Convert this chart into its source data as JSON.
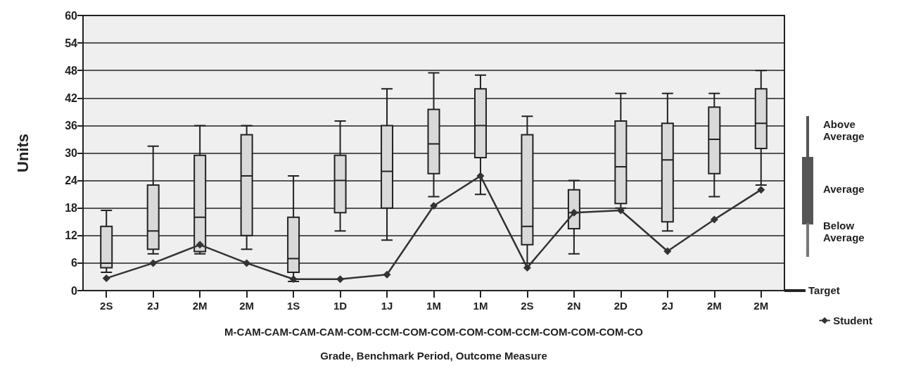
{
  "chart_data": {
    "type": "box",
    "xlabel": "Grade, Benchmark Period, Outcome Measure",
    "ylabel": "Units",
    "categories": [
      "2S",
      "2J",
      "2M",
      "2M",
      "1S",
      "1D",
      "1J",
      "1M",
      "1M",
      "2S",
      "2N",
      "2D",
      "2J",
      "2M",
      "2M"
    ],
    "color": "#d9d9d9",
    "boxes": [
      {
        "low": 4,
        "q1": 5,
        "median": 6,
        "q3": 14,
        "high": 17.5
      },
      {
        "low": 8,
        "q1": 9,
        "median": 13,
        "q3": 23,
        "high": 31.5
      },
      {
        "low": 8,
        "q1": 8.5,
        "median": 16,
        "q3": 29.5,
        "high": 36
      },
      {
        "low": 9,
        "q1": 12,
        "median": 25,
        "q3": 34,
        "high": 36
      },
      {
        "low": 2,
        "q1": 4,
        "median": 7,
        "q3": 16,
        "high": 25
      },
      {
        "low": 13,
        "q1": 17,
        "median": 24,
        "q3": 29.5,
        "high": 37
      },
      {
        "low": 11,
        "q1": 18,
        "median": 26,
        "q3": 36,
        "high": 44
      },
      {
        "low": 20.5,
        "q1": 25.5,
        "median": 32,
        "q3": 39.5,
        "high": 47.5
      },
      {
        "low": 21,
        "q1": 29,
        "median": 36,
        "q3": 44,
        "high": 47
      },
      {
        "low": 6,
        "q1": 10,
        "median": 14,
        "q3": 34,
        "high": 38
      },
      {
        "low": 8,
        "q1": 13.5,
        "median": 17,
        "q3": 22,
        "high": 24
      },
      {
        "low": 18,
        "q1": 19,
        "median": 27,
        "q3": 37,
        "high": 43
      },
      {
        "low": 13,
        "q1": 15,
        "median": 28.5,
        "q3": 36.5,
        "high": 43
      },
      {
        "low": 20.5,
        "q1": 25.5,
        "median": 33,
        "q3": 40,
        "high": 43
      },
      {
        "low": 23,
        "q1": 31,
        "median": 36.5,
        "q3": 44,
        "high": 48
      }
    ],
    "series": [
      {
        "name": "Student",
        "type": "line",
        "color": "#333333",
        "values": [
          2.7,
          6,
          10,
          6,
          2.5,
          2.5,
          3.5,
          18.5,
          25,
          5,
          17,
          17.5,
          8.6,
          15.5,
          22
        ]
      }
    ],
    "marker": "diamond",
    "line_style": "solid",
    "ylim": [
      0,
      60
    ],
    "yticks": [
      0,
      6,
      12,
      18,
      24,
      30,
      36,
      42,
      48,
      54,
      60
    ],
    "grid": "y",
    "legend": "bottom right",
    "annotations": [
      "M-CAM-CAM-CAM-CAM-COM-CCM-COM-COM-COM-COM-CCM-COM-COM-COM-CO",
      "Above Average",
      "Average",
      "Below Average",
      "Target"
    ]
  }
}
